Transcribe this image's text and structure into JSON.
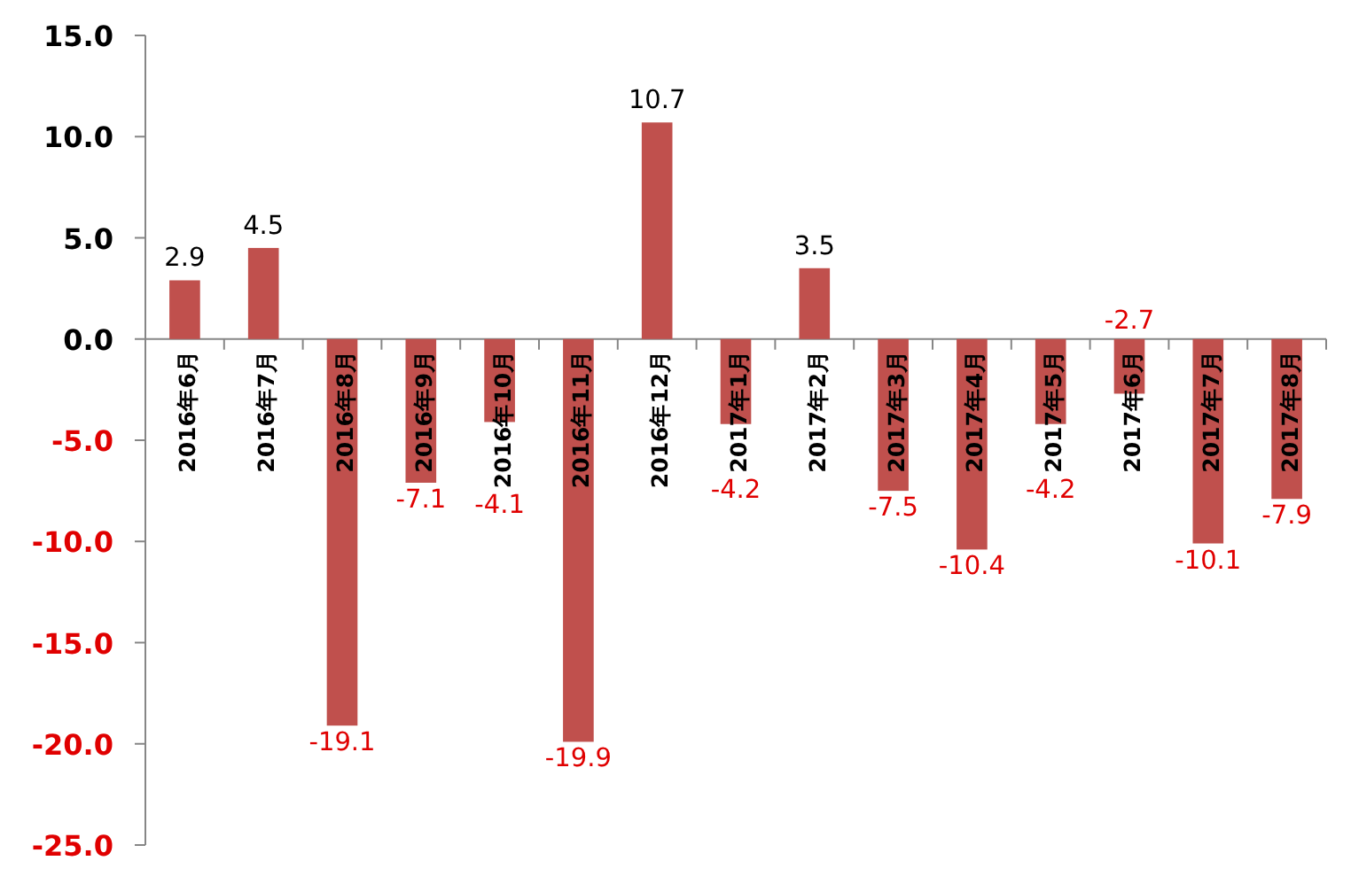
{
  "chart_data": {
    "type": "bar",
    "categories": [
      "2016年6月",
      "2016年7月",
      "2016年8月",
      "2016年9月",
      "2016年10月",
      "2016年11月",
      "2016年12月",
      "2017年1月",
      "2017年2月",
      "2017年3月",
      "2017年4月",
      "2017年5月",
      "2017年6月",
      "2017年7月",
      "2017年8月"
    ],
    "values": [
      2.9,
      4.5,
      -19.1,
      -7.1,
      -4.1,
      -19.9,
      10.7,
      -4.2,
      3.5,
      -7.5,
      -10.4,
      -4.2,
      -2.7,
      -10.1,
      -7.9
    ],
    "color": "#c0504d",
    "data_labels": true,
    "ylim": [
      -25,
      15
    ],
    "yticks": [
      {
        "value": -25,
        "label": "-25.0"
      },
      {
        "value": -20,
        "label": "-20.0"
      },
      {
        "value": -15,
        "label": "-15.0"
      },
      {
        "value": -10,
        "label": "-10.0"
      },
      {
        "value": -5,
        "label": "-5.0"
      },
      {
        "value": 0,
        "label": "0.0"
      },
      {
        "value": 5,
        "label": "5.0"
      },
      {
        "value": 10,
        "label": "10.0"
      },
      {
        "value": 15,
        "label": "15.0"
      }
    ],
    "grid": false,
    "legend": false
  }
}
